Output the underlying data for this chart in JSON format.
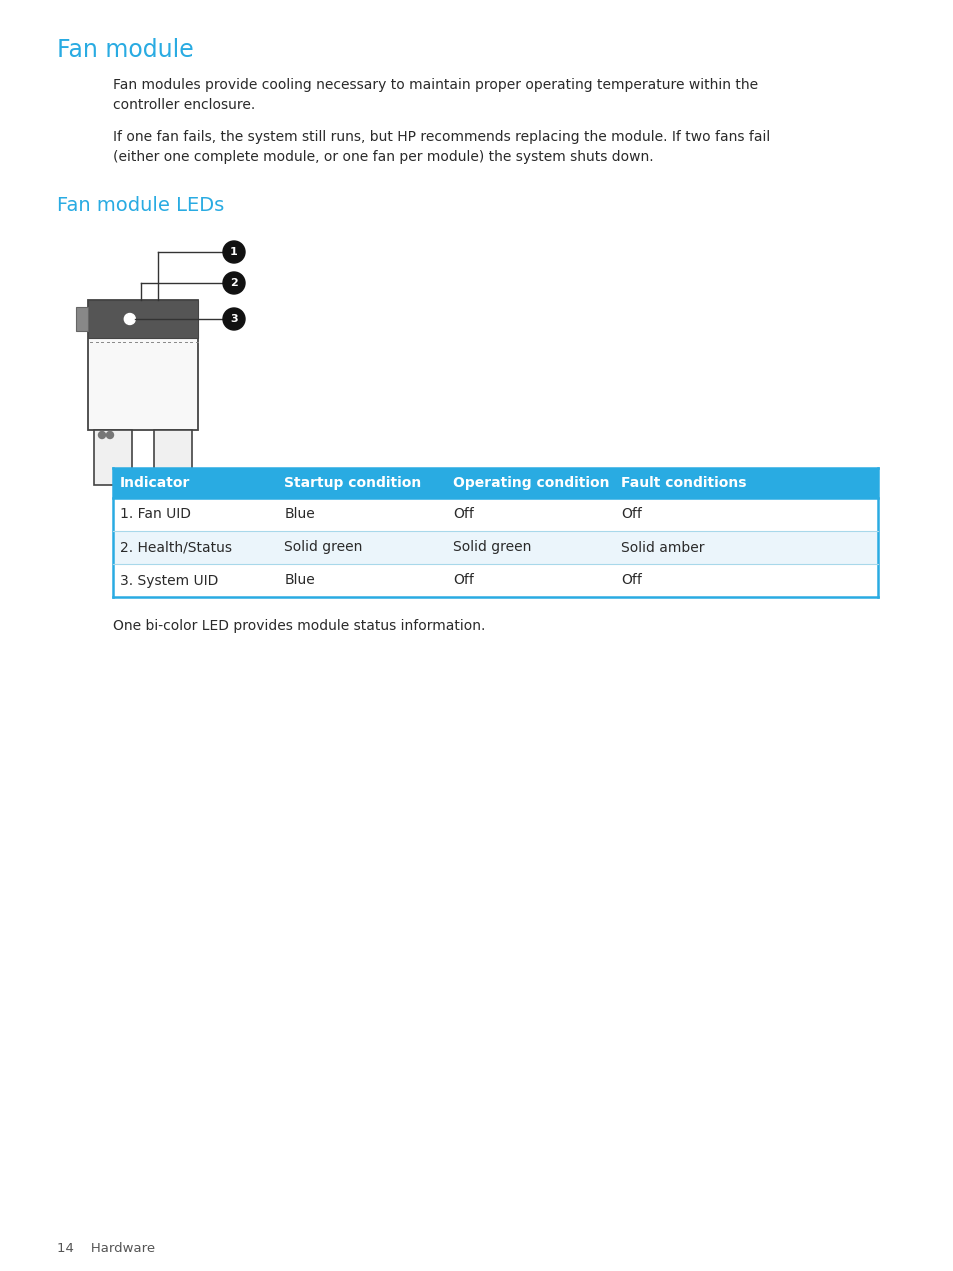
{
  "title": "Fan module",
  "title_color": "#29ABE2",
  "title_fontsize": 17,
  "subtitle": "Fan module LEDs",
  "subtitle_color": "#29ABE2",
  "subtitle_fontsize": 14,
  "body_text1": "Fan modules provide cooling necessary to maintain proper operating temperature within the\ncontroller enclosure.",
  "body_text2": "If one fan fails, the system still runs, but HP recommends replacing the module. If two fans fail\n(either one complete module, or one fan per module) the system shuts down.",
  "footer_text": "One bi-color LED provides module status information.",
  "page_label": "14    Hardware",
  "table_header": [
    "Indicator",
    "Startup condition",
    "Operating condition",
    "Fault conditions"
  ],
  "table_rows": [
    [
      "1. Fan UID",
      "Blue",
      "Off",
      "Off"
    ],
    [
      "2. Health/Status",
      "Solid green",
      "Solid green",
      "Solid amber"
    ],
    [
      "3. System UID",
      "Blue",
      "Off",
      "Off"
    ]
  ],
  "table_header_color": "#29ABE2",
  "table_row_colors": [
    "#ffffff",
    "#EBF5FB",
    "#ffffff"
  ],
  "table_border_color": "#29ABE2",
  "background_color": "#ffffff",
  "text_color": "#2a2a2a",
  "body_fontsize": 10,
  "table_fontsize": 10
}
